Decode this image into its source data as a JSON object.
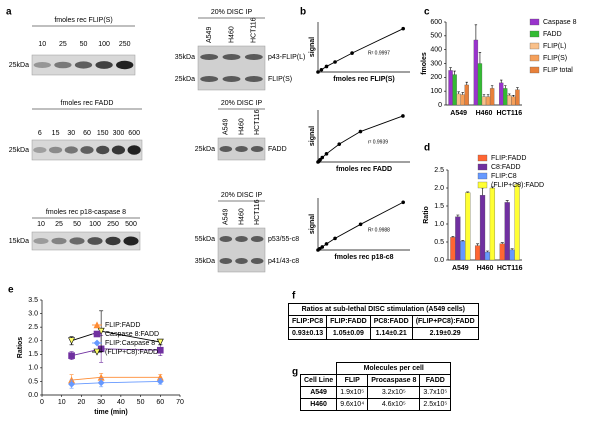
{
  "panel_labels": [
    "a",
    "b",
    "c",
    "d",
    "e",
    "f",
    "g"
  ],
  "blots": [
    {
      "title": "fmoles rec FLIP(S)",
      "lanes": [
        "10",
        "25",
        "50",
        "100",
        "250"
      ],
      "marker": "25kDa",
      "ip_title": "20% DISC IP",
      "cell_lines": [
        "A549",
        "H460",
        "HCT116"
      ],
      "ip_markers": [
        "35kDa",
        "25kDa"
      ],
      "ip_bands": [
        "p43-FLIP(L)",
        "FLIP(S)"
      ]
    },
    {
      "title": "fmoles rec FADD",
      "lanes": [
        "6",
        "15",
        "30",
        "60",
        "150",
        "300",
        "600"
      ],
      "marker": "25kDa",
      "ip_title": "20% DISC IP",
      "cell_lines": [
        "A549",
        "H460",
        "HCT116"
      ],
      "ip_markers": [
        "25kDa"
      ],
      "ip_bands": [
        "FADD"
      ]
    },
    {
      "title": "fmoles rec p18-caspase 8",
      "lanes": [
        "10",
        "25",
        "50",
        "100",
        "250",
        "500"
      ],
      "marker": "15kDa",
      "ip_title": "20% DISC IP",
      "cell_lines": [
        "A549",
        "H460",
        "HCT116"
      ],
      "ip_markers": [
        "55kDa",
        "35kDa"
      ],
      "ip_bands": [
        "p53/55-c8",
        "p41/43-c8"
      ]
    }
  ],
  "chart_data": [
    {
      "type": "line",
      "x_label": "fmoles rec FLIP(S)",
      "y_label": "signal",
      "annotation": "R² 0.9997",
      "x": [
        0,
        10,
        25,
        50,
        100,
        250
      ],
      "values": [
        0,
        2,
        5,
        9,
        17,
        39
      ],
      "xlim": [
        0,
        270
      ],
      "ylim": [
        0,
        45
      ],
      "color": "#000000"
    },
    {
      "type": "line",
      "x_label": "fmoles rec FADD",
      "y_label": "signal",
      "annotation": "r² 0.9939",
      "x": [
        0,
        6,
        15,
        30,
        60,
        150,
        300,
        600
      ],
      "values": [
        0,
        1,
        3,
        6,
        11,
        24,
        41,
        62
      ],
      "xlim": [
        0,
        650
      ],
      "ylim": [
        0,
        70
      ],
      "color": "#000000"
    },
    {
      "type": "line",
      "x_label": "fmoles rec p18-c8",
      "y_label": "signal",
      "annotation": "R² 0.9988",
      "x": [
        0,
        10,
        25,
        50,
        100,
        250,
        500
      ],
      "values": [
        0,
        2,
        5,
        10,
        19,
        42,
        78
      ],
      "xlim": [
        0,
        540
      ],
      "ylim": [
        0,
        85
      ],
      "color": "#000000"
    },
    {
      "type": "bar",
      "y_label": "fmoles",
      "categories": [
        "A549",
        "H460",
        "HCT116"
      ],
      "ylim": [
        0,
        600
      ],
      "yticks": [
        0,
        100,
        200,
        300,
        400,
        500,
        600
      ],
      "series": [
        {
          "name": "Caspase 8",
          "color": "#9933cc",
          "values": [
            250,
            470,
            160
          ],
          "errors": [
            20,
            110,
            20
          ]
        },
        {
          "name": "FADD",
          "color": "#33bb33",
          "values": [
            220,
            300,
            120
          ],
          "errors": [
            25,
            80,
            20
          ]
        },
        {
          "name": "FLIP(L)",
          "color": "#f9c08a",
          "values": [
            80,
            60,
            70
          ],
          "errors": [
            15,
            15,
            10
          ]
        },
        {
          "name": "FLIP(S)",
          "color": "#f5a05a",
          "values": [
            75,
            60,
            60
          ],
          "errors": [
            15,
            15,
            10
          ]
        },
        {
          "name": "FLIP total",
          "color": "#e8803a",
          "values": [
            145,
            120,
            110
          ],
          "errors": [
            20,
            20,
            15
          ]
        }
      ]
    },
    {
      "type": "bar",
      "y_label": "Ratio",
      "categories": [
        "A549",
        "H460",
        "HCT116"
      ],
      "ylim": [
        0,
        2.5
      ],
      "yticks": [
        {
          "value": 0,
          "label": "0.0"
        },
        0.5,
        {
          "value": 1,
          "label": "1.0"
        },
        1.5,
        {
          "value": 2,
          "label": "2.0"
        },
        2.5
      ],
      "series": [
        {
          "name": "FLIP:FADD",
          "color": "#ff6633",
          "values": [
            0.63,
            0.4,
            0.45
          ],
          "errors": [
            0.03,
            0.05,
            0.03
          ]
        },
        {
          "name": "C8:FADD",
          "color": "#7030a0",
          "values": [
            1.2,
            1.8,
            1.6
          ],
          "errors": [
            0.05,
            0.2,
            0.05
          ]
        },
        {
          "name": "FLIP:C8",
          "color": "#6699ff",
          "values": [
            0.52,
            0.22,
            0.28
          ],
          "errors": [
            0.02,
            0.03,
            0.03
          ]
        },
        {
          "name": "(FLIP+C8):FADD",
          "color": "#ffff33",
          "values": [
            1.87,
            2.0,
            2.1
          ],
          "errors": [
            0.02,
            0.03,
            0.02
          ]
        }
      ]
    },
    {
      "type": "line",
      "x_label": "time (min)",
      "y_label": "Ratios",
      "x": [
        15,
        30,
        60
      ],
      "xlim": [
        0,
        70
      ],
      "xticks": [
        0,
        10,
        20,
        30,
        40,
        50,
        60,
        70
      ],
      "ylim": [
        0,
        3.5
      ],
      "yticks": [
        {
          "value": 0,
          "label": "0.0"
        },
        0.5,
        {
          "value": 1,
          "label": "1.0"
        },
        1.5,
        {
          "value": 2,
          "label": "2.0"
        },
        2.5,
        {
          "value": 3,
          "label": "3.0"
        },
        3.5
      ],
      "series": [
        {
          "name": "FLIP:FADD",
          "color": "#ff8c33",
          "marker": "triangle",
          "values": [
            0.55,
            0.65,
            0.65
          ],
          "errors": [
            0.2,
            0.15,
            0.1
          ]
        },
        {
          "name": "Caspase 8:FADD",
          "color": "#7030a0",
          "marker": "square",
          "values": [
            1.45,
            1.7,
            1.65
          ],
          "errors": [
            0.15,
            0.5,
            0.2
          ]
        },
        {
          "name": "FLIP:Caspase 8",
          "color": "#6699ff",
          "marker": "diamond",
          "values": [
            0.4,
            0.45,
            0.5
          ],
          "errors": [
            0.15,
            0.15,
            0.1
          ]
        },
        {
          "name": "(FLIP+C8):FADD",
          "color": "#000000",
          "marker_color": "#ffff66",
          "marker": "triangle-down",
          "values": [
            2.0,
            2.35,
            1.95
          ],
          "errors": [
            0.15,
            0.75,
            0.1
          ]
        }
      ]
    }
  ],
  "table_f": {
    "title": "Ratios at sub-lethal DISC stimulation (A549 cells)",
    "headers": [
      "FLIP:PC8",
      "FLIP:FADD",
      "PC8:FADD",
      "(FLIP+PC8):FADD"
    ],
    "rows": [
      [
        "0.93±0.13",
        "1.05±0.09",
        "1.14±0.21",
        "2.19±0.29"
      ]
    ]
  },
  "table_g": {
    "title": "Molecules per cell",
    "headers": [
      "Cell Line",
      "FLIP",
      "Procaspase 8",
      "FADD"
    ],
    "rows": [
      [
        "A549",
        "1.9x10⁵",
        "3.2x10⁵",
        "3.7x10⁵"
      ],
      [
        "H460",
        "9.6x10⁴",
        "4.6x10⁵",
        "2.5x10⁵"
      ]
    ]
  }
}
